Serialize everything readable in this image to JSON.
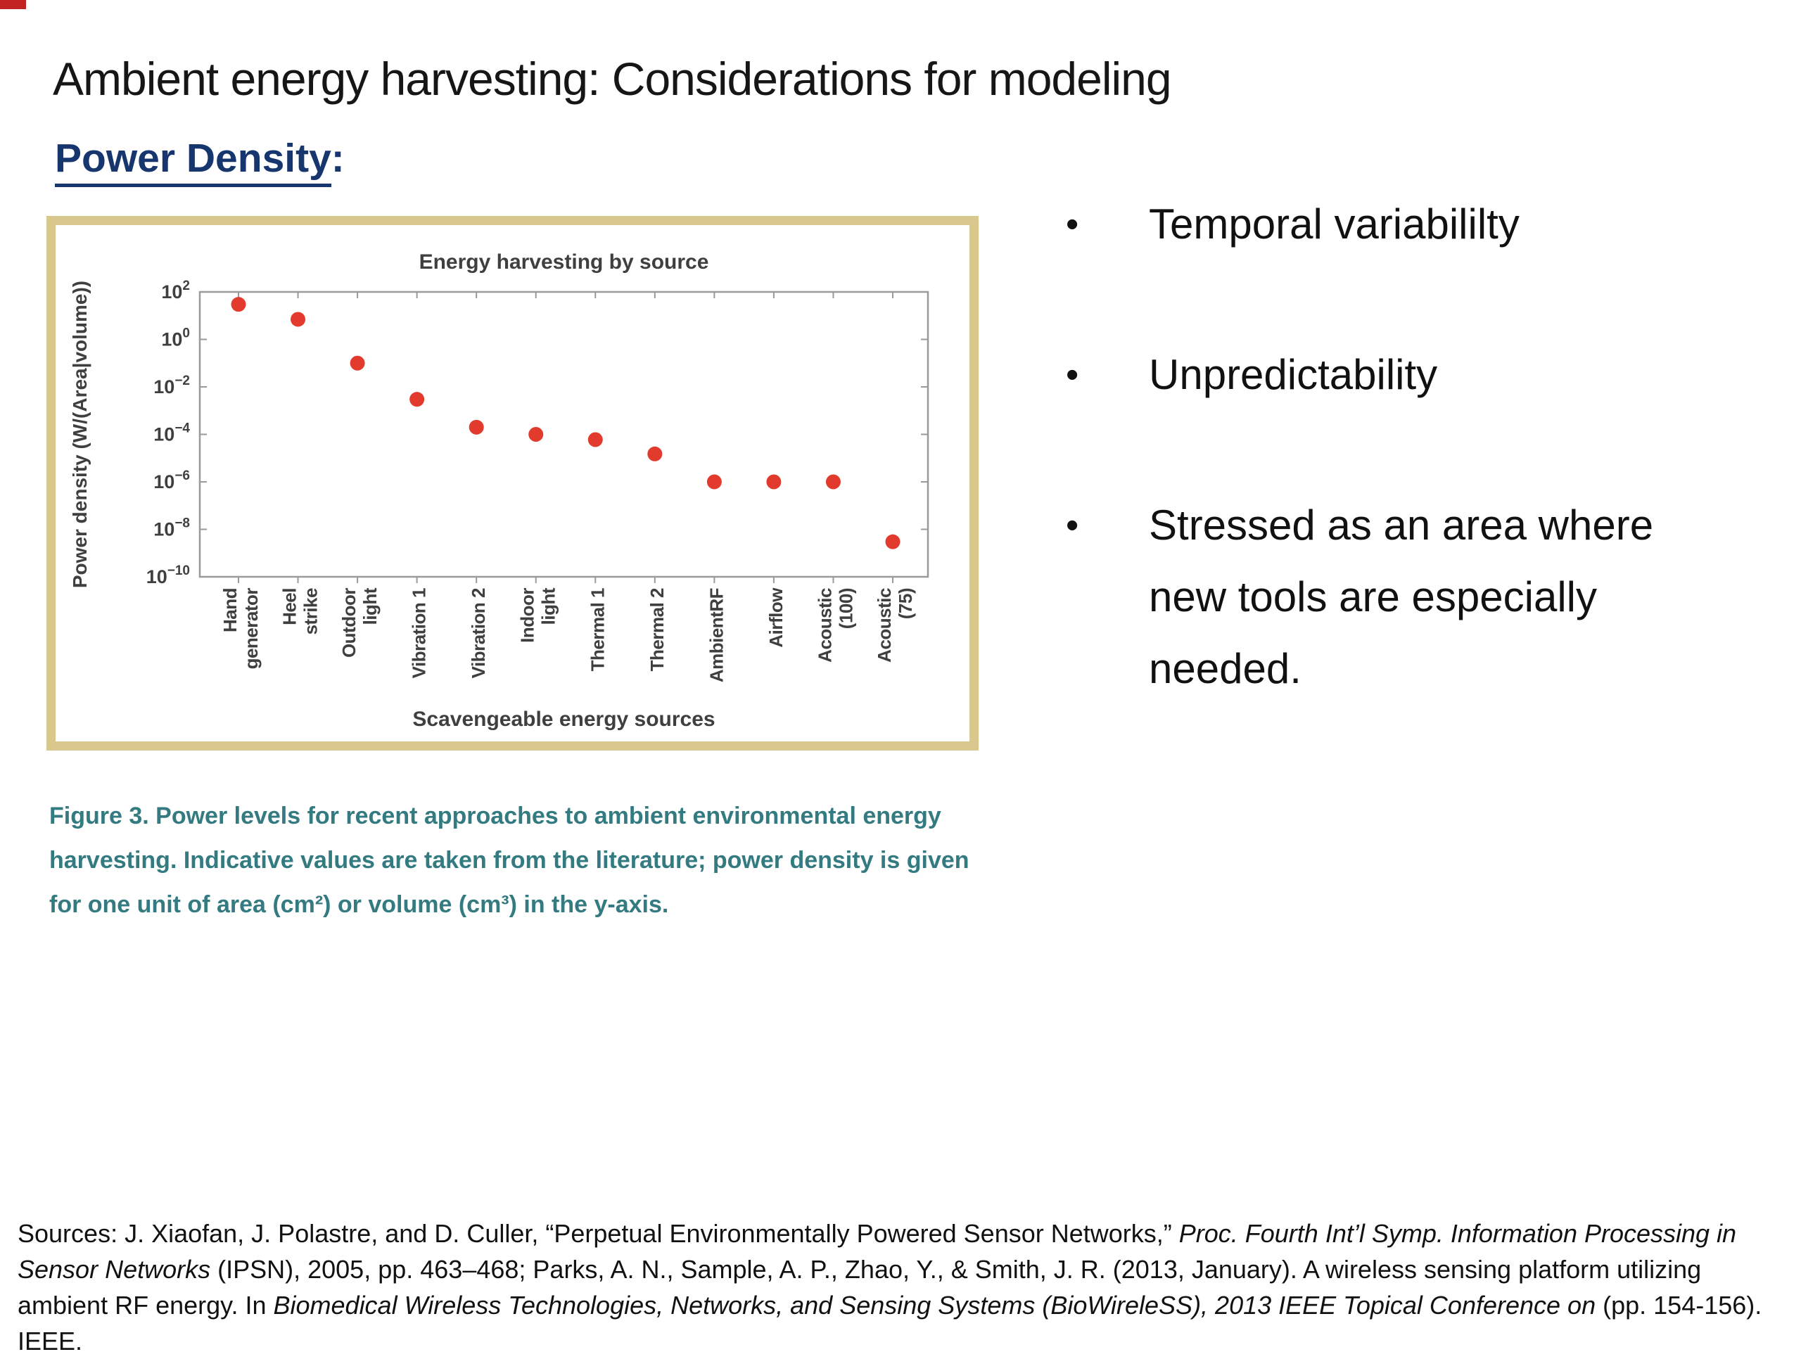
{
  "header": {
    "title": "Ambient energy harvesting: Considerations for modeling"
  },
  "section_heading": {
    "text": "Power Density",
    "suffix": ":"
  },
  "figure": {
    "caption": "Figure 3. Power levels for recent approaches to ambient environmental energy harvesting. Indicative values are taken from the literature; power density is given for one unit of area (cm²) or volume (cm³) in the y-axis."
  },
  "bullets": [
    {
      "marker": "•",
      "text": "Temporal variabililty"
    },
    {
      "marker": "•",
      "text": "Unpredictability"
    },
    {
      "marker": "•",
      "text": "Stressed as an area where new tools are especially needed."
    }
  ],
  "sources": {
    "segments": [
      {
        "italic": false,
        "text": "Sources: J. Xiaofan, J. Polastre, and D. Culler, “Perpetual Environmentally Powered Sensor Networks,” "
      },
      {
        "italic": true,
        "text": "Proc. Fourth Int’l Symp. Information Processing in Sensor Networks "
      },
      {
        "italic": false,
        "text": "(IPSN), 2005, pp. 463–468; Parks, A. N., Sample, A. P., Zhao, Y., & Smith, J. R. (2013, January). A wireless sensing platform utilizing ambient RF energy. In "
      },
      {
        "italic": true,
        "text": "Biomedical Wireless Technologies, Networks, and Sensing Systems (BioWireleSS), 2013 IEEE Topical Conference on "
      },
      {
        "italic": false,
        "text": "(pp. 154-156). IEEE."
      }
    ]
  },
  "colors": {
    "heading_navy": "#17366e",
    "frame_tan": "#d8c88e",
    "caption_teal": "#337b80",
    "point_red": "#e23b2e",
    "corner_red": "#c32222"
  },
  "chart_data": {
    "type": "scatter",
    "title": "Energy harvesting by source",
    "xlabel": "Scavengeable energy sources",
    "ylabel": "Power density (W/(Area|volume))",
    "y_scale": "log",
    "ylim_exponents": [
      -10,
      2
    ],
    "y_tick_exponents": [
      2,
      0,
      -2,
      -4,
      -6,
      -8,
      -10
    ],
    "grid": false,
    "legend": "none",
    "point_color": "#e23b2e",
    "categories": [
      [
        "Hand",
        "generator"
      ],
      [
        "Heel",
        "strike"
      ],
      [
        "Outdoor",
        "light"
      ],
      [
        "Vibration 1"
      ],
      [
        "Vibration 2"
      ],
      [
        "Indoor",
        "light"
      ],
      [
        "Thermal 1"
      ],
      [
        "Thermal 2"
      ],
      [
        "AmbientRF"
      ],
      [
        "Airflow"
      ],
      [
        "Acoustic",
        "(100)"
      ],
      [
        "Acoustic",
        "(75)"
      ]
    ],
    "values": [
      30,
      7,
      0.1,
      0.003,
      0.0002,
      0.0001,
      6e-05,
      1.5e-05,
      1e-06,
      1e-06,
      1e-06,
      3e-09
    ]
  }
}
